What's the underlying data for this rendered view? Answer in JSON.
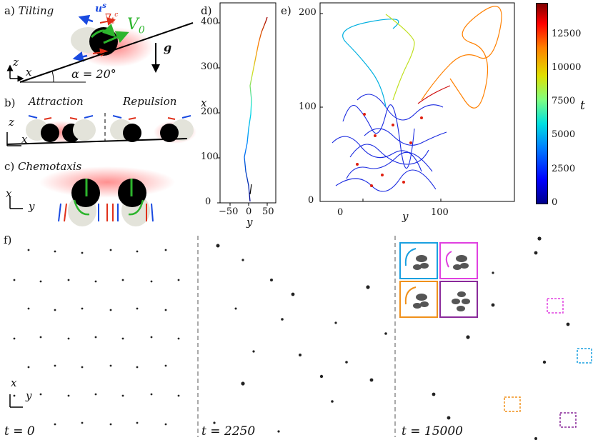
{
  "panels": {
    "a": {
      "label": "a)",
      "title": "Tilting",
      "us": "u",
      "us_sup": "s",
      "grad": "∇",
      "grad_sub": "∥",
      "grad_sup": "c",
      "v0": "V",
      "v0_sub": "0",
      "g": "g",
      "z": "z",
      "x": "x",
      "alpha": "α = 20°"
    },
    "b": {
      "label": "b)",
      "attraction": "Attraction",
      "repulsion": "Repulsion",
      "z": "z",
      "x": "x"
    },
    "c": {
      "label": "c)",
      "title": "Chemotaxis",
      "x": "x",
      "y": "y"
    },
    "d": {
      "label": "d)",
      "xlabel": "y",
      "ylabel": "x",
      "xticks": [
        "−50",
        "0",
        "50"
      ],
      "yticks": [
        "0",
        "100",
        "200",
        "300",
        "400"
      ]
    },
    "e": {
      "label": "e)",
      "xlabel": "y",
      "xticks": [
        "0",
        "100"
      ],
      "yticks": [
        "0",
        "100",
        "200"
      ],
      "colorbar_label": "t",
      "colorbar_ticks": [
        "0",
        "2500",
        "5000",
        "7500",
        "10000",
        "12500"
      ]
    },
    "f": {
      "label": "f)",
      "x": "x",
      "y": "y",
      "times": [
        "t = 0",
        "t = 2250",
        "t = 15000"
      ]
    }
  },
  "colors": {
    "cw_blue": "#1aa0e0",
    "ccw_magenta": "#e040e0",
    "orange": "#f0901a",
    "purple": "#8a2a9a",
    "green": "#2db52d",
    "red": "#e0301a"
  }
}
